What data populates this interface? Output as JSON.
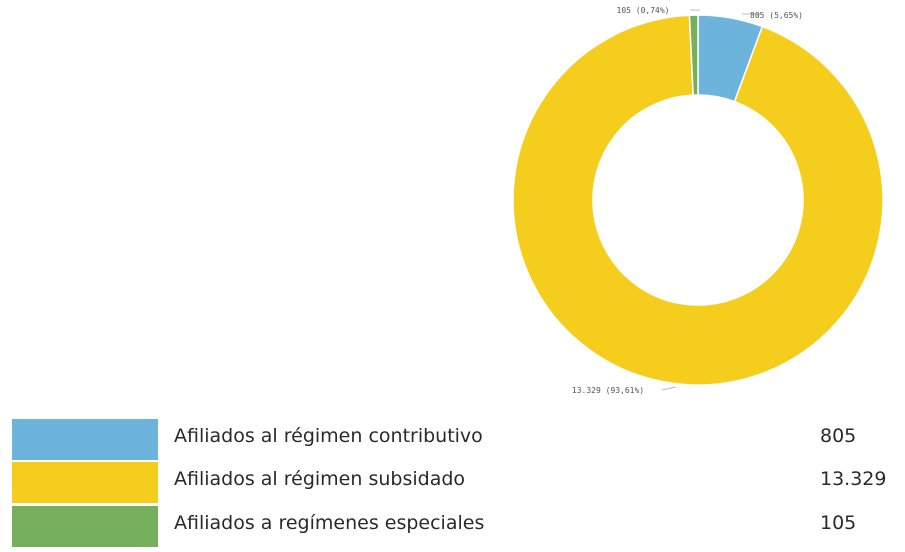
{
  "chart_data": {
    "type": "pie",
    "donut": true,
    "slices": [
      {
        "name": "Afiliados al régimen contributivo",
        "value": 805,
        "display_value": "805",
        "label": "805 (5,65%)",
        "color": "#6cb4dc"
      },
      {
        "name": "Afiliados al régimen subsidado",
        "value": 13329,
        "display_value": "13.329",
        "label": "13.329 (93,61%)",
        "color": "#f5cd1d"
      },
      {
        "name": "Afiliados a regímenes especiales",
        "value": 105,
        "display_value": "105",
        "label": "105 (0,74%)",
        "color": "#76b05c"
      }
    ],
    "legend_position": "bottom"
  }
}
